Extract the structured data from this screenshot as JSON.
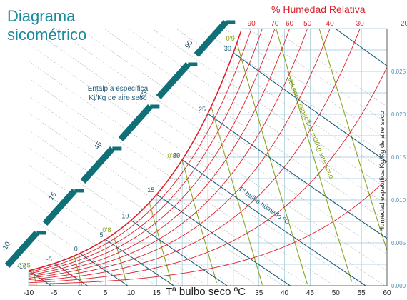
{
  "page": {
    "title_line1": "Diagrama",
    "title_line2": "sicométrico"
  },
  "chart_data": {
    "type": "line",
    "chart_kind": "psychrometric",
    "title": "Diagrama sicométrico",
    "xlabel": "Tª bulbo seco ºC",
    "ylabel": "Humedad específica Kg/Kg de aire seco",
    "xlim": [
      -10,
      60
    ],
    "ylim": [
      0,
      0.03
    ],
    "x_ticks": [
      "-10",
      "-5",
      "0",
      "5",
      "10",
      "15",
      "20",
      "25",
      "30",
      "35",
      "40",
      "45",
      "50",
      "55",
      "60"
    ],
    "y_ticks": [
      "0.000",
      "0.005",
      "0.010",
      "0.015",
      "0.020",
      "0.025"
    ],
    "grid": true,
    "rh_title": "% Humedad Relativa",
    "rh_curves": [
      {
        "label": "",
        "rh": 10
      },
      {
        "label": "20",
        "rh": 20
      },
      {
        "label": "30",
        "rh": 30
      },
      {
        "label": "40",
        "rh": 40
      },
      {
        "label": "50",
        "rh": 50
      },
      {
        "label": "60",
        "rh": 60
      },
      {
        "label": "70",
        "rh": 70
      },
      {
        "label": "",
        "rh": 80
      },
      {
        "label": "90",
        "rh": 90
      },
      {
        "label": "",
        "rh": 100
      }
    ],
    "wet_bulb_title": "Tª bulbo húmedo ºC",
    "wet_bulb_lines": [
      {
        "label": "-10",
        "t": -10
      },
      {
        "label": "-5",
        "t": -5
      },
      {
        "label": "0",
        "t": 0
      },
      {
        "label": "5",
        "t": 5
      },
      {
        "label": "10",
        "t": 10
      },
      {
        "label": "15",
        "t": 15
      },
      {
        "label": "20",
        "t": 20
      },
      {
        "label": "25",
        "t": 25
      },
      {
        "label": "30",
        "t": 30
      },
      {
        "label": "35",
        "t": 35
      }
    ],
    "volume_title": "Volumen específico m3/Kg aire seco",
    "volume_lines": [
      {
        "label": "0'75",
        "v": 0.75
      },
      {
        "label": "",
        "v": 0.775
      },
      {
        "label": "0'8",
        "v": 0.8
      },
      {
        "label": "",
        "v": 0.825
      },
      {
        "label": "0'85",
        "v": 0.85
      },
      {
        "label": "",
        "v": 0.875
      },
      {
        "label": "0'9",
        "v": 0.9
      },
      {
        "label": "",
        "v": 0.925
      },
      {
        "label": "",
        "v": 0.95
      }
    ],
    "enthalpy_title_line1": "Entalpía específica",
    "enthalpy_title_line2": "Kj/Kg de aire seco",
    "enthalpy_scale": [
      {
        "label": "-10",
        "h": -10
      },
      {
        "label": "15",
        "h": 15
      },
      {
        "label": "45",
        "h": 45
      },
      {
        "label": "65",
        "h": 65
      },
      {
        "label": "90",
        "h": 90
      },
      {
        "label": "115",
        "h": 115
      }
    ],
    "colors": {
      "rh": "#e01f2c",
      "wet_bulb": "#1d5f7e",
      "volume": "#8aa51d",
      "grid": "#9cc8d6",
      "scale_bar": "#0f7078",
      "axis_text": "#222222",
      "right_text": "#5a8fb0"
    }
  }
}
